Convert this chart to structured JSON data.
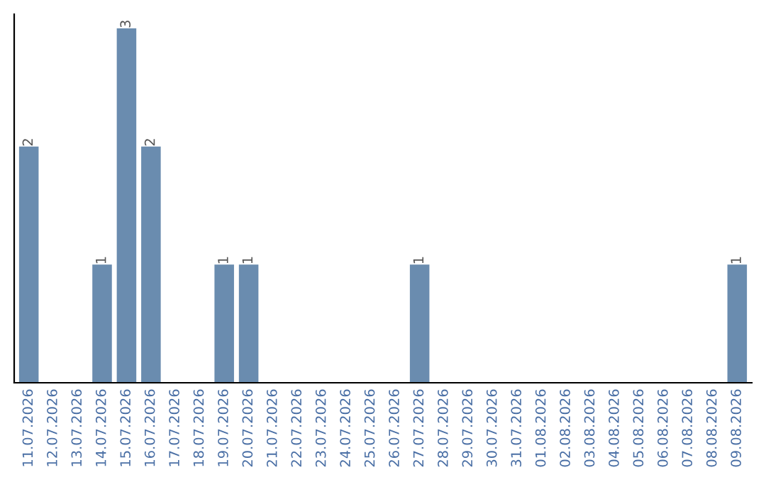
{
  "chart_data": {
    "type": "bar",
    "categories": [
      "11.07.2026",
      "12.07.2026",
      "13.07.2026",
      "14.07.2026",
      "15.07.2026",
      "16.07.2026",
      "17.07.2026",
      "18.07.2026",
      "19.07.2026",
      "20.07.2026",
      "21.07.2026",
      "22.07.2026",
      "23.07.2026",
      "24.07.2026",
      "25.07.2026",
      "26.07.2026",
      "27.07.2026",
      "28.07.2026",
      "29.07.2026",
      "30.07.2026",
      "31.07.2026",
      "01.08.2026",
      "02.08.2026",
      "03.08.2026",
      "04.08.2026",
      "05.08.2026",
      "06.08.2026",
      "07.08.2026",
      "08.08.2026",
      "09.08.2026"
    ],
    "values": [
      2,
      0,
      0,
      1,
      3,
      2,
      0,
      0,
      1,
      1,
      0,
      0,
      0,
      0,
      0,
      0,
      1,
      0,
      0,
      0,
      0,
      0,
      0,
      0,
      0,
      0,
      0,
      0,
      0,
      1
    ],
    "value_labels": [
      "2",
      null,
      null,
      "1",
      "3",
      "2",
      null,
      null,
      "1",
      "1",
      null,
      null,
      null,
      null,
      null,
      null,
      "1",
      null,
      null,
      null,
      null,
      null,
      null,
      null,
      null,
      null,
      null,
      null,
      null,
      "1"
    ],
    "color": "#6a8caf",
    "grid": false,
    "legend": false,
    "tick_labels": "x"
  }
}
